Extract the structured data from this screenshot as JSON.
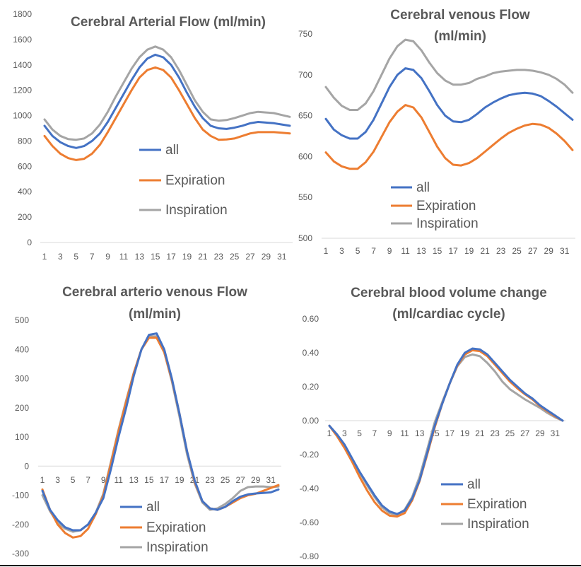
{
  "colors": {
    "all": "#4472C4",
    "expiration": "#ED7D31",
    "inspiration": "#A5A5A5",
    "text": "#595959",
    "axis": "#D9D9D9"
  },
  "chart_data": [
    {
      "id": "arterial",
      "type": "line",
      "title": [
        "Cerebral Arterial Flow (ml/min)"
      ],
      "xlabel": "",
      "ylabel": "",
      "x": [
        1,
        2,
        3,
        4,
        5,
        6,
        7,
        8,
        9,
        10,
        11,
        12,
        13,
        14,
        15,
        16,
        17,
        18,
        19,
        20,
        21,
        22,
        23,
        24,
        25,
        26,
        27,
        28,
        29,
        30,
        31,
        32
      ],
      "x_tick_labels": [
        "1",
        "3",
        "5",
        "7",
        "9",
        "11",
        "13",
        "15",
        "17",
        "19",
        "21",
        "23",
        "25",
        "27",
        "29",
        "31"
      ],
      "ylim": [
        0,
        1800
      ],
      "y_ticks": [
        0,
        200,
        400,
        600,
        800,
        1000,
        1200,
        1400,
        1600,
        1800
      ],
      "legend": [
        "all",
        "Expiration",
        "Inspiration"
      ],
      "series": [
        {
          "name": "all",
          "color_key": "all",
          "values": [
            920,
            840,
            790,
            760,
            745,
            760,
            800,
            860,
            950,
            1060,
            1170,
            1280,
            1380,
            1450,
            1480,
            1460,
            1400,
            1300,
            1180,
            1070,
            980,
            920,
            900,
            895,
            905,
            920,
            940,
            950,
            945,
            940,
            930,
            920
          ]
        },
        {
          "name": "Expiration",
          "color_key": "expiration",
          "values": [
            840,
            760,
            700,
            665,
            650,
            660,
            700,
            770,
            870,
            980,
            1090,
            1200,
            1300,
            1360,
            1380,
            1360,
            1300,
            1200,
            1090,
            980,
            890,
            840,
            810,
            812,
            820,
            840,
            860,
            870,
            870,
            870,
            865,
            860
          ]
        },
        {
          "name": "Inspiration",
          "color_key": "inspiration",
          "values": [
            970,
            890,
            840,
            815,
            810,
            820,
            860,
            930,
            1030,
            1150,
            1260,
            1370,
            1460,
            1520,
            1545,
            1520,
            1460,
            1360,
            1240,
            1120,
            1030,
            970,
            960,
            965,
            980,
            1000,
            1020,
            1030,
            1025,
            1020,
            1005,
            990
          ]
        }
      ]
    },
    {
      "id": "venous",
      "type": "line",
      "title": [
        "Cerebral venous Flow",
        "(ml/min)"
      ],
      "xlabel": "",
      "ylabel": "",
      "x": [
        1,
        2,
        3,
        4,
        5,
        6,
        7,
        8,
        9,
        10,
        11,
        12,
        13,
        14,
        15,
        16,
        17,
        18,
        19,
        20,
        21,
        22,
        23,
        24,
        25,
        26,
        27,
        28,
        29,
        30,
        31,
        32
      ],
      "x_tick_labels": [
        "1",
        "3",
        "5",
        "7",
        "9",
        "11",
        "13",
        "15",
        "17",
        "19",
        "21",
        "23",
        "25",
        "27",
        "29",
        "31"
      ],
      "ylim": [
        500,
        750
      ],
      "y_ticks": [
        500,
        550,
        600,
        650,
        700,
        750
      ],
      "legend": [
        "all",
        "Expiration",
        "Inspiration"
      ],
      "series": [
        {
          "name": "all",
          "color_key": "all",
          "values": [
            646,
            633,
            626,
            622,
            622,
            630,
            645,
            665,
            685,
            700,
            708,
            706,
            696,
            680,
            663,
            650,
            643,
            642,
            645,
            652,
            660,
            666,
            671,
            675,
            677,
            678,
            677,
            674,
            668,
            661,
            653,
            645
          ]
        },
        {
          "name": "Expiration",
          "color_key": "expiration",
          "values": [
            605,
            594,
            588,
            585,
            585,
            593,
            606,
            624,
            642,
            655,
            663,
            660,
            648,
            630,
            612,
            598,
            590,
            589,
            592,
            598,
            606,
            614,
            622,
            629,
            634,
            638,
            640,
            639,
            635,
            628,
            619,
            608
          ]
        },
        {
          "name": "Inspiration",
          "color_key": "inspiration",
          "values": [
            685,
            672,
            662,
            657,
            657,
            665,
            680,
            700,
            720,
            735,
            743,
            741,
            730,
            715,
            702,
            693,
            688,
            688,
            690,
            695,
            698,
            702,
            704,
            705,
            706,
            706,
            705,
            703,
            700,
            695,
            688,
            678
          ]
        }
      ]
    },
    {
      "id": "av",
      "type": "line",
      "title": [
        "Cerebral arterio venous Flow",
        "(ml/min)"
      ],
      "xlabel": "",
      "ylabel": "",
      "x": [
        1,
        2,
        3,
        4,
        5,
        6,
        7,
        8,
        9,
        10,
        11,
        12,
        13,
        14,
        15,
        16,
        17,
        18,
        19,
        20,
        21,
        22,
        23,
        24,
        25,
        26,
        27,
        28,
        29,
        30,
        31,
        32
      ],
      "x_tick_labels": [
        "1",
        "3",
        "5",
        "7",
        "9",
        "11",
        "13",
        "15",
        "17",
        "19",
        "21",
        "23",
        "25",
        "27",
        "29",
        "31"
      ],
      "ylim": [
        -300,
        500
      ],
      "y_ticks": [
        -300,
        -200,
        -100,
        0,
        100,
        200,
        300,
        400,
        500
      ],
      "legend": [
        "all",
        "Expiration",
        "Inspiration"
      ],
      "series": [
        {
          "name": "all",
          "color_key": "all",
          "values": [
            -85,
            -150,
            -185,
            -210,
            -220,
            -220,
            -200,
            -160,
            -110,
            -10,
            100,
            200,
            310,
            400,
            450,
            455,
            400,
            300,
            180,
            50,
            -50,
            -120,
            -145,
            -150,
            -140,
            -120,
            -105,
            -97,
            -94,
            -92,
            -90,
            -80
          ]
        },
        {
          "name": "Expiration",
          "color_key": "expiration",
          "values": [
            -80,
            -150,
            -200,
            -230,
            -245,
            -240,
            -215,
            -165,
            -100,
            10,
            120,
            220,
            320,
            400,
            440,
            440,
            390,
            295,
            180,
            50,
            -55,
            -120,
            -145,
            -150,
            -140,
            -125,
            -110,
            -100,
            -95,
            -85,
            -75,
            -65
          ]
        },
        {
          "name": "Inspiration",
          "color_key": "inspiration",
          "values": [
            -100,
            -155,
            -195,
            -215,
            -225,
            -220,
            -200,
            -160,
            -95,
            15,
            125,
            225,
            320,
            400,
            445,
            445,
            390,
            290,
            170,
            40,
            -60,
            -125,
            -150,
            -145,
            -130,
            -110,
            -85,
            -72,
            -70,
            -70,
            -72,
            -70
          ]
        }
      ]
    },
    {
      "id": "volume",
      "type": "line",
      "title": [
        "Cerebral blood volume change",
        "(ml/cardiac cycle)"
      ],
      "xlabel": "",
      "ylabel": "",
      "x": [
        1,
        2,
        3,
        4,
        5,
        6,
        7,
        8,
        9,
        10,
        11,
        12,
        13,
        14,
        15,
        16,
        17,
        18,
        19,
        20,
        21,
        22,
        23,
        24,
        25,
        26,
        27,
        28,
        29,
        30,
        31,
        32
      ],
      "x_tick_labels": [
        "1",
        "3",
        "5",
        "7",
        "9",
        "11",
        "13",
        "15",
        "17",
        "19",
        "21",
        "23",
        "25",
        "27",
        "29",
        "31"
      ],
      "ylim": [
        -0.8,
        0.6
      ],
      "y_ticks": [
        -0.8,
        -0.6,
        -0.4,
        -0.2,
        0,
        0.2,
        0.4,
        0.6
      ],
      "y_tick_labels": [
        "-0.80",
        "-0.60",
        "-0.40",
        "-0.20",
        "0.00",
        "0.20",
        "0.40",
        "0.60"
      ],
      "legend": [
        "all",
        "Expiration",
        "Inspiration"
      ],
      "series": [
        {
          "name": "all",
          "color_key": "all",
          "values": [
            -0.03,
            -0.08,
            -0.14,
            -0.22,
            -0.3,
            -0.37,
            -0.44,
            -0.5,
            -0.535,
            -0.55,
            -0.53,
            -0.46,
            -0.35,
            -0.19,
            -0.03,
            0.1,
            0.22,
            0.33,
            0.4,
            0.425,
            0.42,
            0.39,
            0.34,
            0.29,
            0.24,
            0.2,
            0.16,
            0.13,
            0.09,
            0.06,
            0.03,
            0.0
          ]
        },
        {
          "name": "Expiration",
          "color_key": "expiration",
          "values": [
            -0.03,
            -0.09,
            -0.16,
            -0.24,
            -0.33,
            -0.41,
            -0.48,
            -0.53,
            -0.56,
            -0.565,
            -0.545,
            -0.47,
            -0.355,
            -0.2,
            -0.04,
            0.1,
            0.22,
            0.325,
            0.39,
            0.415,
            0.41,
            0.38,
            0.33,
            0.28,
            0.23,
            0.19,
            0.155,
            0.125,
            0.085,
            0.055,
            0.025,
            0.0
          ]
        },
        {
          "name": "Inspiration",
          "color_key": "inspiration",
          "values": [
            -0.03,
            -0.08,
            -0.15,
            -0.225,
            -0.305,
            -0.38,
            -0.45,
            -0.51,
            -0.545,
            -0.555,
            -0.525,
            -0.45,
            -0.33,
            -0.17,
            -0.01,
            0.11,
            0.22,
            0.32,
            0.375,
            0.39,
            0.38,
            0.34,
            0.29,
            0.23,
            0.185,
            0.155,
            0.125,
            0.1,
            0.075,
            0.045,
            0.02,
            0.0
          ]
        }
      ]
    }
  ]
}
